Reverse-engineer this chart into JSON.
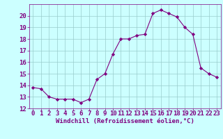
{
  "x": [
    0,
    1,
    2,
    3,
    4,
    5,
    6,
    7,
    8,
    9,
    10,
    11,
    12,
    13,
    14,
    15,
    16,
    17,
    18,
    19,
    20,
    21,
    22,
    23
  ],
  "y": [
    13.8,
    13.7,
    13.0,
    12.8,
    12.8,
    12.8,
    12.5,
    12.8,
    14.5,
    15.0,
    16.7,
    18.0,
    18.0,
    18.3,
    18.4,
    20.2,
    20.5,
    20.2,
    19.9,
    19.0,
    18.4,
    15.5,
    15.0,
    14.7
  ],
  "line_color": "#800080",
  "marker": "D",
  "marker_size": 2.2,
  "bg_color": "#ccffff",
  "grid_color": "#99cccc",
  "xlabel": "Windchill (Refroidissement éolien,°C)",
  "xlabel_color": "#800080",
  "tick_color": "#800080",
  "ylim": [
    12,
    21
  ],
  "yticks": [
    12,
    13,
    14,
    15,
    16,
    17,
    18,
    19,
    20
  ],
  "xlim": [
    -0.5,
    23.5
  ],
  "xticks": [
    0,
    1,
    2,
    3,
    4,
    5,
    6,
    7,
    8,
    9,
    10,
    11,
    12,
    13,
    14,
    15,
    16,
    17,
    18,
    19,
    20,
    21,
    22,
    23
  ],
  "font_size": 6.5,
  "xlabel_fontsize": 6.5
}
